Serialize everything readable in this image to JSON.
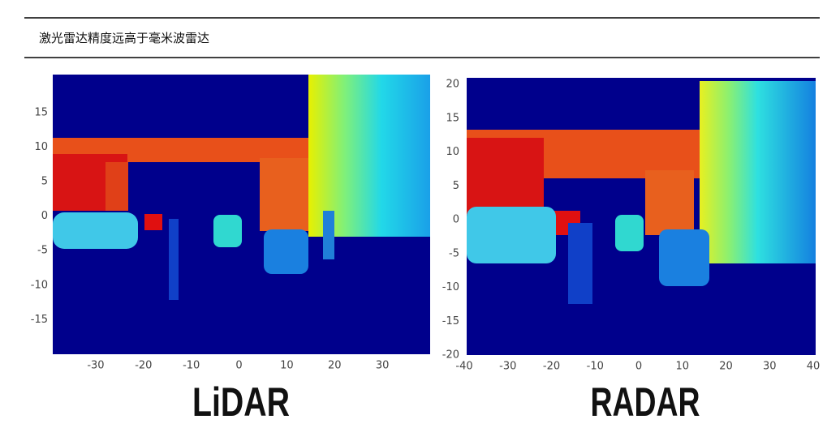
{
  "header": {
    "title": "激光雷达精度远高于毫米波雷达"
  },
  "figure": {
    "panels": [
      {
        "label": "LiDAR",
        "xlim": [
          -39,
          40
        ],
        "ylim": [
          -20,
          20.5
        ],
        "xticks": [
          -30,
          -20,
          -10,
          0,
          10,
          20,
          30
        ],
        "yticks": [
          -15,
          -10,
          -5,
          0,
          5,
          10,
          15
        ]
      },
      {
        "label": "RADAR",
        "xlim": [
          -40,
          40
        ],
        "ylim": [
          -20,
          20
        ],
        "xticks": [
          -40,
          -30,
          -20,
          -10,
          0,
          10,
          20,
          30,
          40
        ],
        "yticks": [
          -20,
          -15,
          -10,
          -5,
          0,
          5,
          10,
          15,
          20
        ]
      }
    ]
  }
}
